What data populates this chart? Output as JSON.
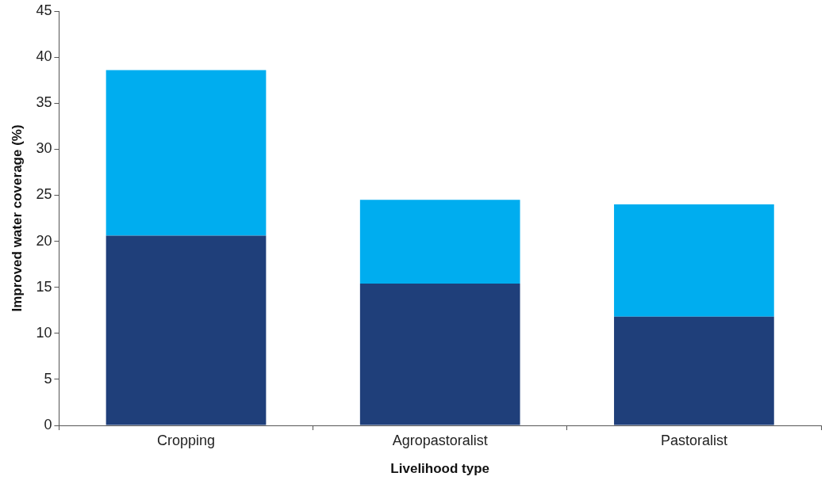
{
  "chart_data": {
    "type": "bar",
    "stacked": true,
    "xlabel": "Livelihood type",
    "ylabel": "Improved water coverage (%)",
    "categories": [
      "Cropping",
      "Agropastoralist",
      "Pastoralist"
    ],
    "series": [
      {
        "color": "#1f3f7a",
        "values": [
          20.6,
          15.4,
          11.8
        ]
      },
      {
        "color": "#00adef",
        "values": [
          18.0,
          9.1,
          12.2
        ]
      }
    ],
    "ylim": [
      0,
      45
    ],
    "yticks": [
      0,
      5,
      10,
      15,
      20,
      25,
      30,
      35,
      40,
      45
    ],
    "grid": false,
    "legend": false
  }
}
